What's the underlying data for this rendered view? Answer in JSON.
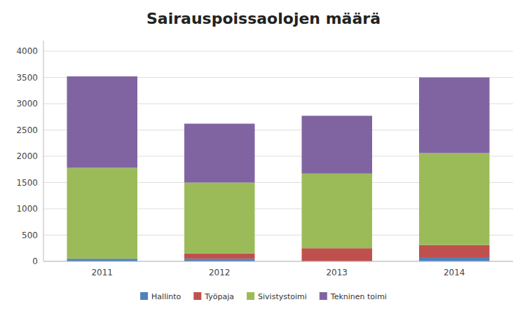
{
  "chart_data": {
    "type": "bar",
    "title": "Sairauspoissaolojen määrä",
    "categories": [
      "2011",
      "2012",
      "2013",
      "2014"
    ],
    "series": [
      {
        "name": "Hallinto",
        "color": "#4F81BD",
        "values": [
          50,
          50,
          0,
          80
        ]
      },
      {
        "name": "Työpaja",
        "color": "#C0504D",
        "values": [
          0,
          100,
          250,
          230
        ]
      },
      {
        "name": "Sivistystoimi",
        "color": "#9BBB59",
        "values": [
          1730,
          1350,
          1420,
          1750
        ]
      },
      {
        "name": "Tekninen toimi",
        "color": "#8064A2",
        "values": [
          1740,
          1120,
          1100,
          1440
        ]
      }
    ],
    "ylim": [
      0,
      4200
    ],
    "yticks": [
      0,
      500,
      1000,
      1500,
      2000,
      2500,
      3000,
      3500,
      4000
    ],
    "stacked": true,
    "grid": true,
    "legend": "bottom"
  }
}
